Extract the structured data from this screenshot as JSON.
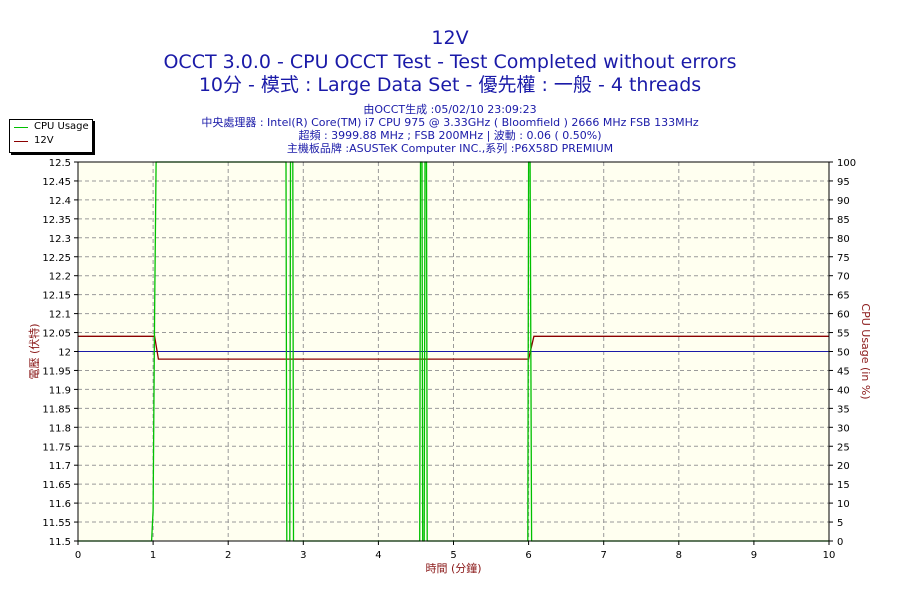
{
  "header": {
    "title_line1": "12V",
    "title_line2": "OCCT 3.0.0 - CPU OCCT Test - Test Completed without errors",
    "title_line3": "10分 - 模式 : Large Data Set - 優先權 : 一般 - 4 threads",
    "info_line1": "由OCCT生成 :05/02/10 23:09:23",
    "info_line2": "中央處理器 : Intel(R) Core(TM) i7 CPU 975 @ 3.33GHz ( Bloomfield ) 2666 MHz FSB 133MHz",
    "info_line3": "超頻 : 3999.88 MHz ; FSB 200MHz | 波動 : 0.06 ( 0.50%)",
    "info_line4": "主機板品牌 :ASUSTeK Computer INC.,系列 :P6X58D PREMIUM"
  },
  "legend": {
    "items": [
      {
        "label": "CPU Usage",
        "color": "#00c000"
      },
      {
        "label": "12V",
        "color": "#8b0000"
      }
    ]
  },
  "chart_data": {
    "type": "line",
    "xlabel": "時間 (分鐘)",
    "ylabel_left": "電壓 (伏特)",
    "ylabel_right": "CPU Usage (in %)",
    "xlim": [
      0,
      10
    ],
    "ylim_left": [
      11.5,
      12.5
    ],
    "ylim_right": [
      0,
      100
    ],
    "x_ticks": [
      "0",
      "1",
      "2",
      "3",
      "4",
      "5",
      "6",
      "7",
      "8",
      "9",
      "10"
    ],
    "y_ticks_left": [
      "11.5",
      "11.55",
      "11.6",
      "11.65",
      "11.7",
      "11.75",
      "11.8",
      "11.85",
      "11.9",
      "11.95",
      "12",
      "12.05",
      "12.1",
      "12.15",
      "12.2",
      "12.25",
      "12.3",
      "12.35",
      "12.4",
      "12.45",
      "12.5"
    ],
    "y_ticks_right": [
      "0",
      "5",
      "10",
      "15",
      "20",
      "25",
      "30",
      "35",
      "40",
      "45",
      "50",
      "55",
      "60",
      "65",
      "70",
      "75",
      "80",
      "85",
      "90",
      "95",
      "100"
    ],
    "reference_line": {
      "y": 12.0,
      "color": "#1a1aa8"
    },
    "grid": true,
    "background_color": "#fffff0",
    "series": [
      {
        "name": "12V",
        "axis": "left",
        "color": "#8b0000",
        "points": [
          [
            0,
            12.04
          ],
          [
            1.02,
            12.04
          ],
          [
            1.07,
            11.98
          ],
          [
            6.0,
            11.98
          ],
          [
            6.07,
            12.04
          ],
          [
            10,
            12.04
          ]
        ]
      },
      {
        "name": "CPU Usage",
        "axis": "right",
        "color": "#00c000",
        "points": [
          [
            0,
            0
          ],
          [
            0.98,
            0
          ],
          [
            1.0,
            8
          ],
          [
            1.02,
            60
          ],
          [
            1.04,
            100
          ],
          [
            2.77,
            100
          ],
          [
            2.78,
            0
          ],
          [
            2.82,
            0
          ],
          [
            2.83,
            100
          ],
          [
            2.86,
            100
          ],
          [
            2.87,
            0
          ],
          [
            4.55,
            0
          ],
          [
            4.56,
            100
          ],
          [
            4.58,
            100
          ],
          [
            4.59,
            0
          ],
          [
            4.61,
            0
          ],
          [
            4.62,
            100
          ],
          [
            4.64,
            100
          ],
          [
            4.65,
            0
          ],
          [
            5.99,
            0
          ],
          [
            6.0,
            100
          ],
          [
            6.02,
            100
          ],
          [
            6.04,
            0
          ],
          [
            10,
            0
          ]
        ]
      }
    ]
  }
}
